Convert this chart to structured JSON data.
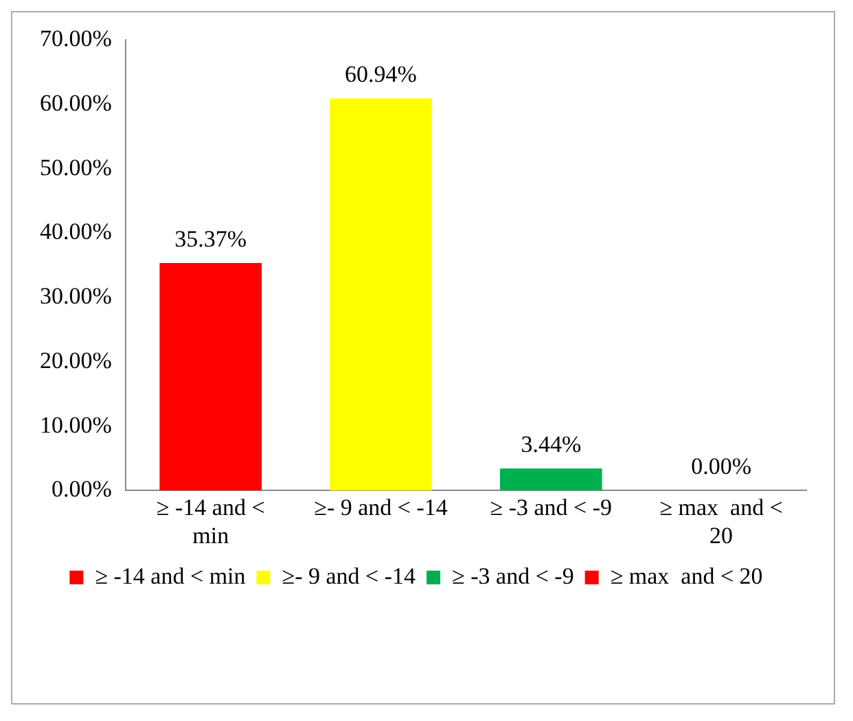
{
  "chart_data": {
    "type": "bar",
    "categories": [
      "≥ -14 and < min",
      "≥- 9 and < -14",
      "≥ -3 and < -9",
      "≥ max  and < 20"
    ],
    "series": [
      {
        "name": "≥ -14 and < min",
        "color": "#ff0000",
        "values": [
          35.37,
          null,
          null,
          null
        ],
        "value_labels": [
          "35.37%",
          null,
          null,
          null
        ]
      },
      {
        "name": "≥- 9 and < -14",
        "color": "#ffff00",
        "values": [
          null,
          60.94,
          null,
          null
        ],
        "value_labels": [
          null,
          "60.94%",
          null,
          null
        ]
      },
      {
        "name": "≥ -3 and < -9",
        "color": "#00b050",
        "values": [
          null,
          null,
          3.44,
          null
        ],
        "value_labels": [
          null,
          null,
          "3.44%",
          null
        ]
      },
      {
        "name": "≥ max  and < 20",
        "color": "#ff0000",
        "values": [
          null,
          null,
          null,
          0
        ],
        "value_labels": [
          null,
          null,
          null,
          "0.00%"
        ]
      }
    ],
    "ylim": [
      0,
      70
    ],
    "yticks": [
      {
        "value": 0,
        "label": "0.00%"
      },
      {
        "value": 10,
        "label": "10.00%"
      },
      {
        "value": 20,
        "label": "20.00%"
      },
      {
        "value": 30,
        "label": "30.00%"
      },
      {
        "value": 40,
        "label": "40.00%"
      },
      {
        "value": 50,
        "label": "50.00%"
      },
      {
        "value": 60,
        "label": "60.00%"
      },
      {
        "value": 70,
        "label": "70.00%"
      }
    ],
    "grid": false,
    "legend": "bottom"
  }
}
